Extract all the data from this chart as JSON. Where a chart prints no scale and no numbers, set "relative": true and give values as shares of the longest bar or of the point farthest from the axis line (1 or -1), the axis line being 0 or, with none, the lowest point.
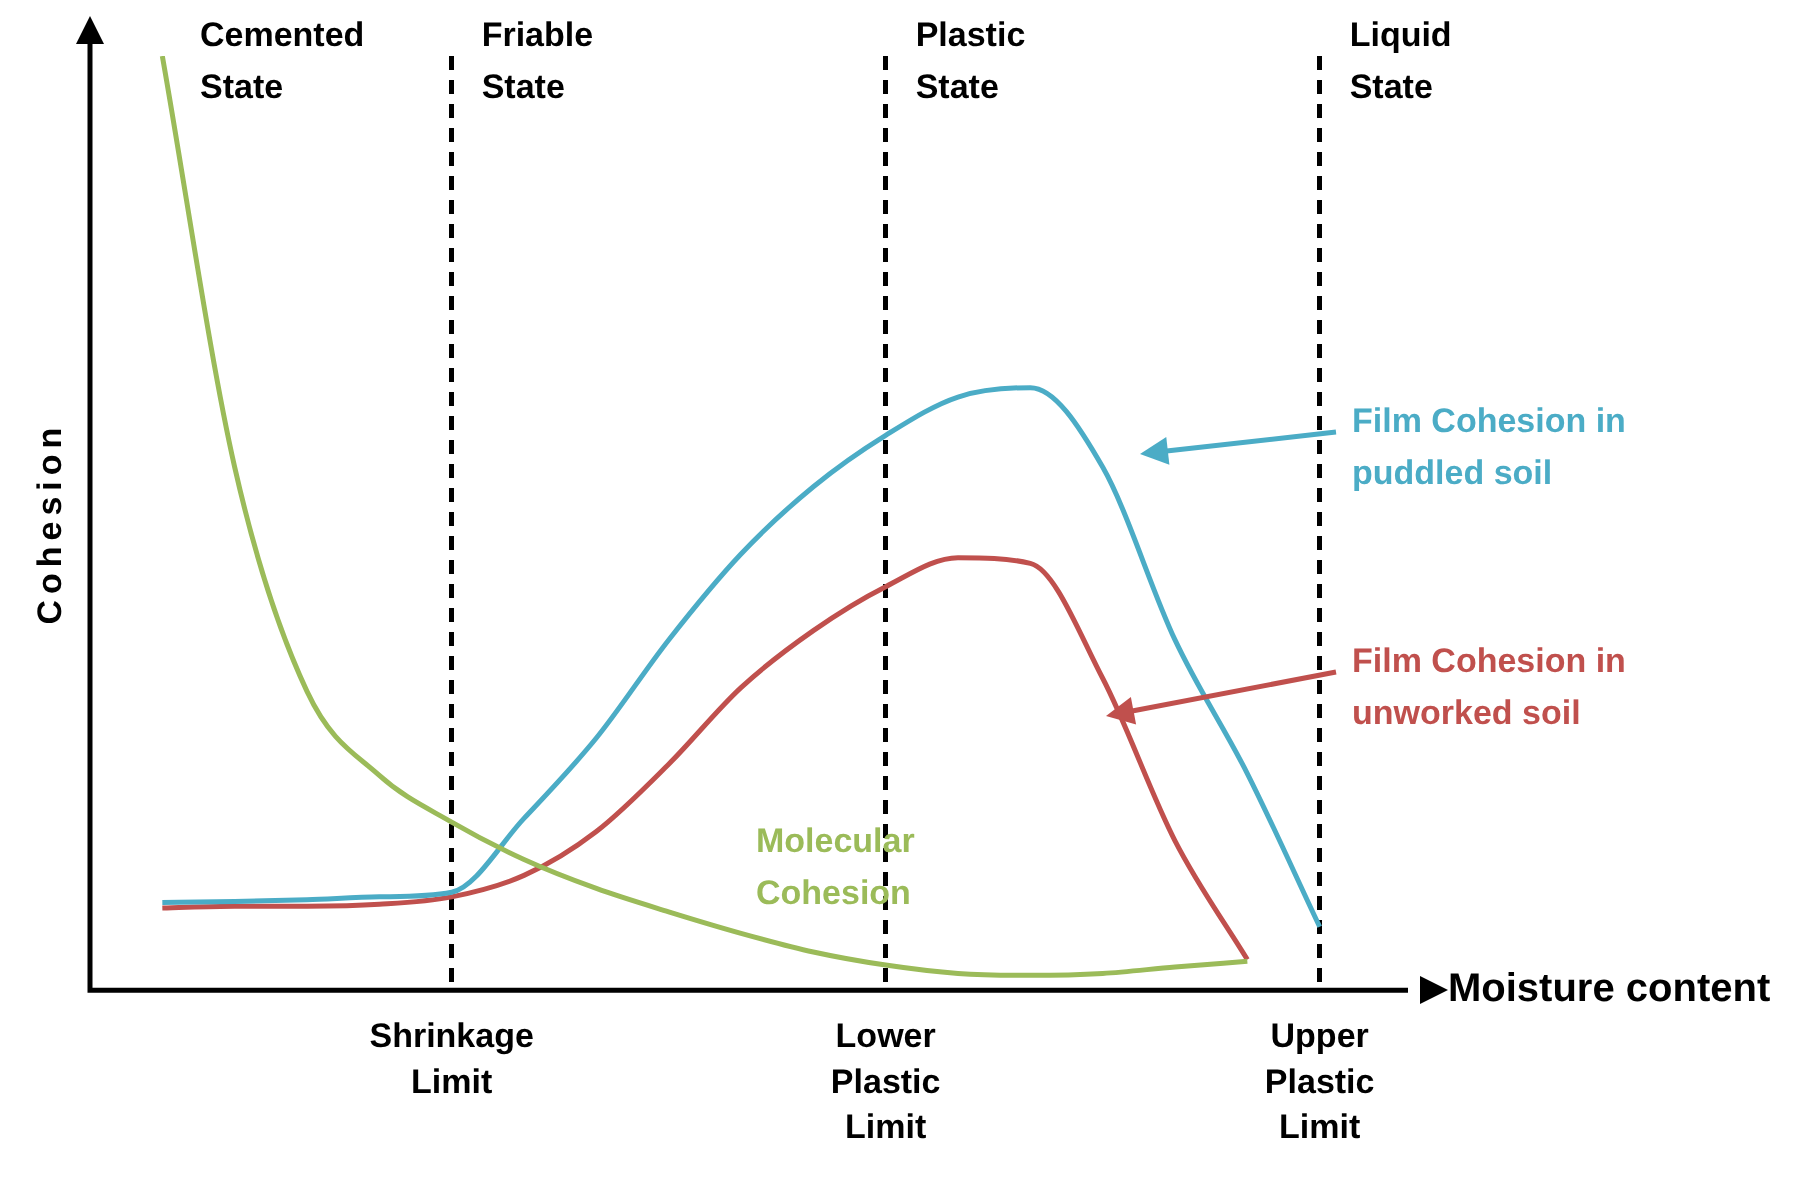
{
  "chart_data": {
    "type": "line",
    "relative": true,
    "xlabel": "Moisture content",
    "ylabel": "Cohesion",
    "tick_labels": "x",
    "grid": "x",
    "legend": false,
    "marker": "none",
    "line_style": "solid",
    "categories": [
      null,
      null,
      null,
      null,
      null,
      "Shrinkage Limit",
      null,
      null,
      null,
      null,
      null,
      "Lower Plastic Limit",
      null,
      null,
      null,
      null,
      null,
      "Upper Plastic Limit",
      null
    ],
    "annotations": [
      "Cemented State",
      "Friable State",
      "Plastic State",
      "Liquid State"
    ],
    "series": [
      {
        "name": "Molecular Cohesion",
        "color": "#9bbb59",
        "values": [
          null,
          1,
          0.56,
          0.32,
          0.23,
          0.18,
          0.14,
          0.109,
          0.084,
          0.061,
          0.041,
          0.027,
          0.018,
          0.016,
          0.018,
          0.025,
          0.031,
          null,
          null
        ]
      },
      {
        "name": "Film Cohesion in puddled soil",
        "color": "#4bacc6",
        "values": [
          null,
          0.094,
          0.095,
          0.097,
          0.1,
          0.105,
          0.184,
          0.27,
          0.375,
          0.467,
          0.539,
          0.594,
          0.635,
          0.645,
          0.56,
          0.375,
          0.232,
          0.068,
          null
        ]
      },
      {
        "name": "Film Cohesion in unworked soil",
        "color": "#c0504d",
        "values": [
          null,
          0.088,
          0.09,
          0.09,
          0.092,
          0.1,
          0.123,
          0.17,
          0.242,
          0.324,
          0.385,
          0.432,
          0.463,
          0.457,
          0.334,
          0.16,
          0.033,
          null,
          null
        ]
      }
    ]
  }
}
